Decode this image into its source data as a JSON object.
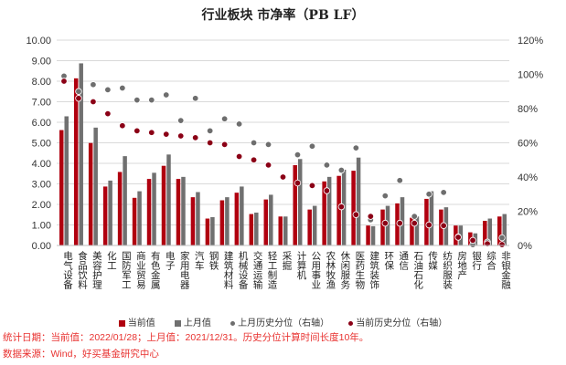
{
  "chart_data": {
    "type": "bar",
    "title": "行业板块 市净率（PB LF）",
    "categories": [
      "电气设备",
      "食品饮料",
      "美容护理",
      "化工",
      "国防军工",
      "商业贸易",
      "有色金属",
      "电子",
      "家用电器",
      "汽车",
      "钢铁",
      "建筑材料",
      "机械设备",
      "交通运输",
      "轻工制造",
      "采掘",
      "计算机",
      "公用事业",
      "农林牧渔",
      "休闲服务",
      "医药生物",
      "建筑装饰",
      "环保",
      "通信",
      "石油石化",
      "传媒",
      "纺织服装",
      "房地产",
      "银行",
      "综合",
      "非银金融"
    ],
    "series": [
      {
        "name": "当前值",
        "axis": "left",
        "kind": "bar",
        "color": "#b0000f",
        "values": [
          5.62,
          8.14,
          4.99,
          2.87,
          3.58,
          2.32,
          3.24,
          3.88,
          3.24,
          2.35,
          1.31,
          2.2,
          2.57,
          1.53,
          2.24,
          1.41,
          3.91,
          1.75,
          3.12,
          3.39,
          3.64,
          0.97,
          1.75,
          2.05,
          1.35,
          2.27,
          1.75,
          0.97,
          0.64,
          1.2,
          1.41
        ]
      },
      {
        "name": "上月值",
        "axis": "left",
        "kind": "bar",
        "color": "#707070",
        "values": [
          6.29,
          8.87,
          5.74,
          3.16,
          4.35,
          2.64,
          3.54,
          4.43,
          3.34,
          2.6,
          1.38,
          2.35,
          2.87,
          1.6,
          2.47,
          1.41,
          4.21,
          1.93,
          3.34,
          3.69,
          4.28,
          0.94,
          1.93,
          2.35,
          1.41,
          2.64,
          1.86,
          0.97,
          0.59,
          1.31,
          1.53
        ]
      },
      {
        "name": "上月历史分位（右轴）",
        "axis": "right",
        "kind": "dot",
        "color": "#6e6e6e",
        "values": [
          99,
          90,
          94,
          91,
          92,
          85,
          85,
          88,
          73,
          86,
          67,
          74,
          71,
          60,
          59,
          40,
          53,
          58,
          47,
          44,
          57,
          15,
          29,
          38,
          17,
          30,
          31,
          5,
          0.5,
          2,
          4.5
        ]
      },
      {
        "name": "当前历史分位（右轴）",
        "axis": "right",
        "kind": "dot",
        "color": "#8b0016",
        "values": [
          96,
          86,
          84,
          77,
          70,
          67,
          66,
          65,
          64,
          63,
          60,
          59,
          52,
          50,
          47,
          40,
          36.5,
          35,
          32,
          22.6,
          18,
          17,
          13,
          13,
          13,
          12,
          11.6,
          4.8,
          3,
          1,
          0.5
        ]
      }
    ],
    "ylim": [
      0,
      10
    ],
    "yticks": [
      "0.00",
      "1.00",
      "2.00",
      "3.00",
      "4.00",
      "5.00",
      "6.00",
      "7.00",
      "8.00",
      "9.00",
      "10.00"
    ],
    "y2lim": [
      0,
      120
    ],
    "y2ticks": [
      "0%",
      "20%",
      "40%",
      "60%",
      "80%",
      "100%",
      "120%"
    ],
    "grid": true,
    "legend": "bottom"
  },
  "footer": {
    "line1": "统计日期：当前值：2022/01/28；上月值：2021/12/31。历史分位计算时间长度10年。",
    "line2": "数据来源：Wind，好买基金研究中心"
  }
}
